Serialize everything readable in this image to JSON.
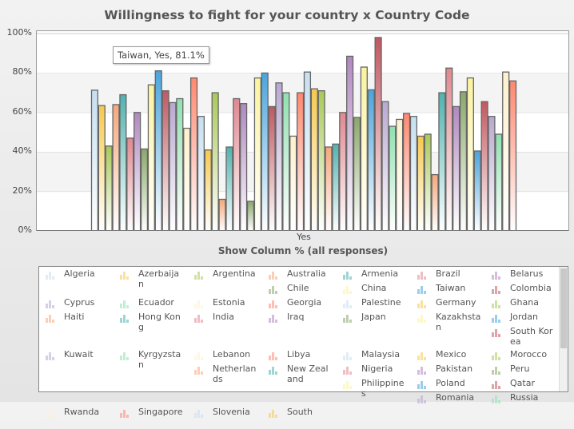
{
  "chart_data": {
    "type": "bar",
    "title": "Willingness to fight for your country x Country Code",
    "xlabel": "Show Column % (all responses)",
    "ylabel": "",
    "categories": [
      "Yes"
    ],
    "ylim": [
      0,
      100
    ],
    "yticks": [
      "0%",
      "20%",
      "40%",
      "60%",
      "80%",
      "100%"
    ],
    "grid": true,
    "legend_position": "bottom",
    "palette": [
      "#c6dff0",
      "#f6c94e",
      "#a9c95a",
      "#f5a77a",
      "#4fb3b0",
      "#e08890",
      "#b088c0",
      "#8aa86a",
      "#fbf3a0",
      "#4aa4dc",
      "#c05860",
      "#b8a8d0",
      "#90e0b0",
      "#fff0cc",
      "#ff8870"
    ],
    "series": [
      {
        "name": "Algeria",
        "values": [
          71.3
        ]
      },
      {
        "name": "Azerbaijan",
        "values": [
          63.5
        ]
      },
      {
        "name": "Argentina",
        "values": [
          43
        ]
      },
      {
        "name": "Australia",
        "values": [
          64
        ]
      },
      {
        "name": "Armenia",
        "values": [
          69
        ]
      },
      {
        "name": "Brazil",
        "values": [
          47
        ]
      },
      {
        "name": "Belarus",
        "values": [
          60
        ]
      },
      {
        "name": "Chile",
        "values": [
          41.5
        ]
      },
      {
        "name": "China",
        "values": [
          74
        ]
      },
      {
        "name": "Taiwan",
        "values": [
          81.1
        ]
      },
      {
        "name": "Colombia",
        "values": [
          71
        ]
      },
      {
        "name": "Cyprus",
        "values": [
          65
        ]
      },
      {
        "name": "Ecuador",
        "values": [
          67
        ]
      },
      {
        "name": "Estonia",
        "values": [
          52
        ]
      },
      {
        "name": "Georgia",
        "values": [
          77.5
        ]
      },
      {
        "name": "Palestine",
        "values": [
          58
        ]
      },
      {
        "name": "Germany",
        "values": [
          41
        ]
      },
      {
        "name": "Ghana",
        "values": [
          70
        ]
      },
      {
        "name": "Haiti",
        "values": [
          16
        ]
      },
      {
        "name": "Hong Kong",
        "values": [
          42.5
        ]
      },
      {
        "name": "India",
        "values": [
          67
        ]
      },
      {
        "name": "Iraq",
        "values": [
          64.5
        ]
      },
      {
        "name": "Japan",
        "values": [
          15
        ]
      },
      {
        "name": "Kazakhstan",
        "values": [
          77.5
        ]
      },
      {
        "name": "Jordan",
        "values": [
          80
        ]
      },
      {
        "name": "South Korea",
        "values": [
          63
        ]
      },
      {
        "name": "Kuwait",
        "values": [
          75
        ]
      },
      {
        "name": "Kyrgyzstan",
        "values": [
          70
        ]
      },
      {
        "name": "Lebanon",
        "values": [
          48
        ]
      },
      {
        "name": "Libya",
        "values": [
          70
        ]
      },
      {
        "name": "Malaysia",
        "values": [
          80.5
        ]
      },
      {
        "name": "Mexico",
        "values": [
          72
        ]
      },
      {
        "name": "Morocco",
        "values": [
          71
        ]
      },
      {
        "name": "Netherlands",
        "values": [
          42.5
        ]
      },
      {
        "name": "New Zealand",
        "values": [
          44
        ]
      },
      {
        "name": "Nigeria",
        "values": [
          60
        ]
      },
      {
        "name": "Pakistan",
        "values": [
          88.5
        ]
      },
      {
        "name": "Peru",
        "values": [
          57.5
        ]
      },
      {
        "name": "Philippines",
        "values": [
          83
        ]
      },
      {
        "name": "Poland",
        "values": [
          71.5
        ]
      },
      {
        "name": "Qatar",
        "values": [
          98
        ]
      },
      {
        "name": "Romania",
        "values": [
          65.5
        ]
      },
      {
        "name": "Russia",
        "values": [
          53
        ]
      },
      {
        "name": "Rwanda",
        "values": [
          56.5
        ]
      },
      {
        "name": "Singapore",
        "values": [
          59.5
        ]
      },
      {
        "name": "Slovenia",
        "values": [
          58
        ]
      },
      {
        "name": "South",
        "values": [
          48
        ]
      },
      {
        "values": [
          49
        ]
      },
      {
        "values": [
          28.5
        ]
      },
      {
        "values": [
          70
        ]
      },
      {
        "values": [
          82.5
        ]
      },
      {
        "values": [
          63
        ]
      },
      {
        "values": [
          70.5
        ]
      },
      {
        "values": [
          77.5
        ]
      },
      {
        "values": [
          40.5
        ]
      },
      {
        "values": [
          65.5
        ]
      },
      {
        "values": [
          58
        ]
      },
      {
        "values": [
          49
        ]
      },
      {
        "values": [
          80.5
        ]
      },
      {
        "values": [
          76
        ]
      }
    ],
    "tooltip": "Taiwan, Yes, 81.1%"
  },
  "legend": {
    "items": [
      "Algeria",
      "Azerbaijan",
      "Argentina",
      "Australia",
      "Armenia",
      "Brazil",
      "Belarus",
      "Chile",
      "China",
      "Taiwan",
      "Colombia",
      "Cyprus",
      "Ecuador",
      "Estonia",
      "Georgia",
      "Palestine",
      "Germany",
      "Ghana",
      "Haiti",
      "Hong Kong",
      "India",
      "Iraq",
      "Japan",
      "Kazakhstan",
      "Jordan",
      "South Korea",
      "Kuwait",
      "Kyrgyzstan",
      "Lebanon",
      "Libya",
      "Malaysia",
      "Mexico",
      "Morocco",
      "Netherlands",
      "New Zealand",
      "Nigeria",
      "Pakistan",
      "Peru",
      "Philippines",
      "Poland",
      "Qatar",
      "Romania",
      "Russia",
      "Rwanda",
      "Singapore",
      "Slovenia",
      "South"
    ]
  }
}
